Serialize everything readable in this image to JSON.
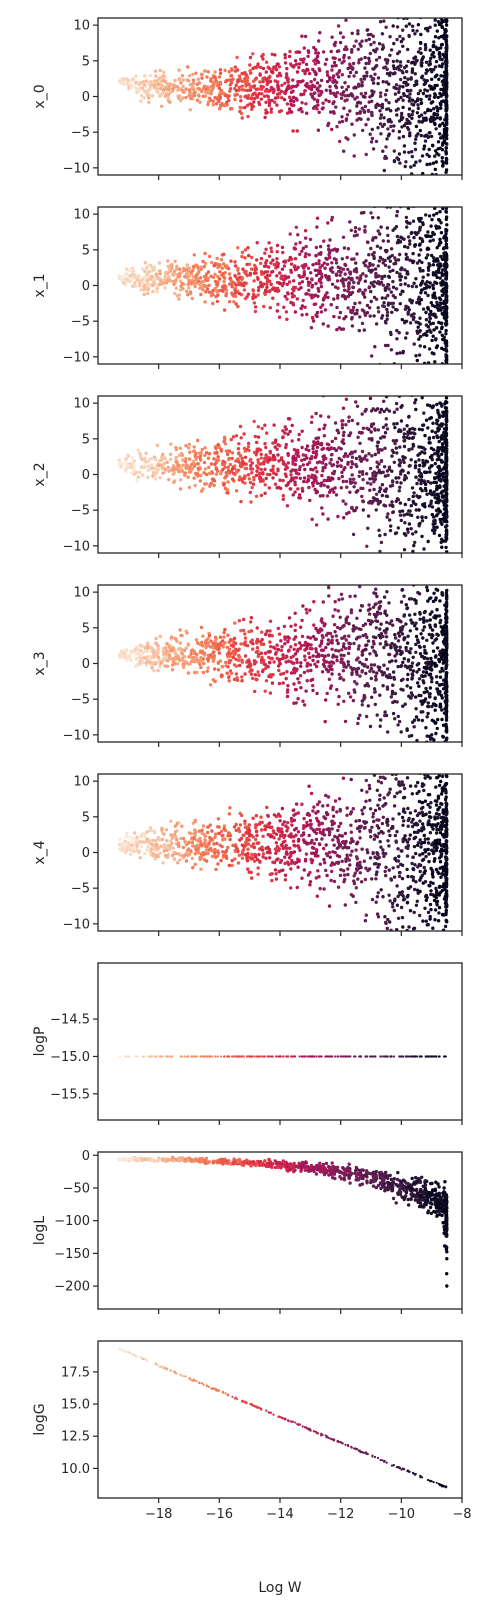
{
  "chart_data": {
    "type": "scatter",
    "layout": "8 vertically stacked panels sharing the x axis",
    "xlabel": "Log W",
    "xlim": [
      -20,
      -8
    ],
    "x_ticks": [
      -18,
      -16,
      -14,
      -12,
      -10,
      -8
    ],
    "x_tick_labels": [
      "−18",
      "−16",
      "−14",
      "−12",
      "−10",
      "−8"
    ],
    "color_scale": "rocket: light peach (≈ −19, low Log W) → orange → crimson → dark purple (≈ −8.5, high Log W)",
    "colors": {
      "rocket": [
        "#faebdd",
        "#f6b48e",
        "#f37651",
        "#e13342",
        "#ad1759",
        "#701f57",
        "#35193e",
        "#03051a"
      ],
      "axes": "#262626",
      "background": "#ffffff"
    },
    "grid": false,
    "legend": "none",
    "panels": [
      {
        "ylabel": "x_0",
        "ylim": [
          -11,
          11
        ],
        "y_ticks": [
          10,
          5,
          0,
          -5,
          -10
        ],
        "y_tick_labels": [
          "10",
          "5",
          "0",
          "−5",
          "−10"
        ],
        "envelope": [
          {
            "x": -19.3,
            "y_low": 2.0,
            "y_high": 2.4
          },
          {
            "x": -18.5,
            "y_low": 0.0,
            "y_high": 2.7
          },
          {
            "x": -17,
            "y_low": -0.8,
            "y_high": 3.0
          },
          {
            "x": -15,
            "y_low": -1.4,
            "y_high": 4.0
          },
          {
            "x": -13,
            "y_low": -2.5,
            "y_high": 6.3
          },
          {
            "x": -11,
            "y_low": -5.5,
            "y_high": 8.5
          },
          {
            "x": -10,
            "y_low": -8.0,
            "y_high": 9.8
          },
          {
            "x": -8.5,
            "y_low": -10.0,
            "y_high": 10.0
          }
        ]
      },
      {
        "ylabel": "x_1",
        "ylim": [
          -11,
          11
        ],
        "y_ticks": [
          10,
          5,
          0,
          -5,
          -10
        ],
        "y_tick_labels": [
          "10",
          "5",
          "0",
          "−5",
          "−10"
        ],
        "envelope": [
          {
            "x": -19.3,
            "y_low": 0.5,
            "y_high": 1.5
          },
          {
            "x": -18.5,
            "y_low": -0.5,
            "y_high": 2.5
          },
          {
            "x": -17,
            "y_low": -1.0,
            "y_high": 3.0
          },
          {
            "x": -15,
            "y_low": -2.0,
            "y_high": 4.0
          },
          {
            "x": -13,
            "y_low": -3.5,
            "y_high": 6.0
          },
          {
            "x": -11,
            "y_low": -6.0,
            "y_high": 9.0
          },
          {
            "x": -10,
            "y_low": -8.5,
            "y_high": 10.0
          },
          {
            "x": -8.5,
            "y_low": -10.0,
            "y_high": 10.0
          }
        ]
      },
      {
        "ylabel": "x_2",
        "ylim": [
          -11,
          11
        ],
        "y_ticks": [
          10,
          5,
          0,
          -5,
          -10
        ],
        "y_tick_labels": [
          "10",
          "5",
          "0",
          "−5",
          "−10"
        ],
        "envelope": [
          {
            "x": -19.3,
            "y_low": 1.0,
            "y_high": 2.0
          },
          {
            "x": -18.5,
            "y_low": -0.5,
            "y_high": 2.8
          },
          {
            "x": -17,
            "y_low": -1.0,
            "y_high": 3.5
          },
          {
            "x": -15,
            "y_low": -2.0,
            "y_high": 4.5
          },
          {
            "x": -13,
            "y_low": -3.5,
            "y_high": 6.5
          },
          {
            "x": -11,
            "y_low": -6.0,
            "y_high": 9.0
          },
          {
            "x": -10,
            "y_low": -8.5,
            "y_high": 10.0
          },
          {
            "x": -8.5,
            "y_low": -10.0,
            "y_high": 10.0
          }
        ]
      },
      {
        "ylabel": "x_3",
        "ylim": [
          -11,
          11
        ],
        "y_ticks": [
          10,
          5,
          0,
          -5,
          -10
        ],
        "y_tick_labels": [
          "10",
          "5",
          "0",
          "−5",
          "−10"
        ],
        "envelope": [
          {
            "x": -19.3,
            "y_low": 0.7,
            "y_high": 1.5
          },
          {
            "x": -18.5,
            "y_low": 0.0,
            "y_high": 2.5
          },
          {
            "x": -17,
            "y_low": -1.0,
            "y_high": 3.5
          },
          {
            "x": -15,
            "y_low": -2.0,
            "y_high": 4.5
          },
          {
            "x": -13,
            "y_low": -3.5,
            "y_high": 6.5
          },
          {
            "x": -11,
            "y_low": -6.0,
            "y_high": 9.0
          },
          {
            "x": -10,
            "y_low": -8.5,
            "y_high": 10.0
          },
          {
            "x": -8.5,
            "y_low": -10.0,
            "y_high": 10.0
          }
        ]
      },
      {
        "ylabel": "x_4",
        "ylim": [
          -11,
          11
        ],
        "y_ticks": [
          10,
          5,
          0,
          -5,
          -10
        ],
        "y_tick_labels": [
          "10",
          "5",
          "0",
          "−5",
          "−10"
        ],
        "envelope": [
          {
            "x": -19.3,
            "y_low": 0.2,
            "y_high": 1.5
          },
          {
            "x": -18.5,
            "y_low": -0.5,
            "y_high": 2.5
          },
          {
            "x": -17,
            "y_low": -1.2,
            "y_high": 3.2
          },
          {
            "x": -15,
            "y_low": -2.0,
            "y_high": 4.5
          },
          {
            "x": -13,
            "y_low": -3.5,
            "y_high": 6.5
          },
          {
            "x": -11,
            "y_low": -6.0,
            "y_high": 9.0
          },
          {
            "x": -10,
            "y_low": -8.5,
            "y_high": 10.0
          },
          {
            "x": -8.5,
            "y_low": -10.0,
            "y_high": 10.0
          }
        ]
      },
      {
        "ylabel": "logP",
        "ylim": [
          -15.85,
          -13.75
        ],
        "y_ticks": [
          -14.5,
          -15,
          -15.5
        ],
        "y_tick_labels": [
          "−14.5",
          "−15.0",
          "−15.5"
        ],
        "envelope": [
          {
            "x": -19.3,
            "y_low": -15.0,
            "y_high": -15.0
          },
          {
            "x": -8.5,
            "y_low": -15.0,
            "y_high": -15.0
          }
        ]
      },
      {
        "ylabel": "logL",
        "ylim": [
          -235,
          5
        ],
        "y_ticks": [
          0,
          -50,
          -100,
          -150,
          -200
        ],
        "y_tick_labels": [
          "0",
          "−50",
          "−100",
          "−150",
          "−200"
        ],
        "envelope": [
          {
            "x": -19.3,
            "y_low": -7,
            "y_high": -4
          },
          {
            "x": -17,
            "y_low": -10,
            "y_high": -5
          },
          {
            "x": -15,
            "y_low": -15,
            "y_high": -8
          },
          {
            "x": -13,
            "y_low": -25,
            "y_high": -12
          },
          {
            "x": -11,
            "y_low": -45,
            "y_high": -25
          },
          {
            "x": -10,
            "y_low": -65,
            "y_high": -35
          },
          {
            "x": -9,
            "y_low": -85,
            "y_high": -45
          },
          {
            "x": -8.6,
            "y_low": -95,
            "y_high": -55
          },
          {
            "x": -8.5,
            "y_low": -225,
            "y_high": -60
          }
        ]
      },
      {
        "ylabel": "logG",
        "ylim": [
          7.7,
          19.9
        ],
        "y_ticks": [
          17.5,
          15.0,
          12.5,
          10.0
        ],
        "y_tick_labels": [
          "17.5",
          "15.0",
          "12.5",
          "10.0"
        ],
        "envelope": [
          {
            "x": -19.3,
            "y_low": 19.25,
            "y_high": 19.35
          },
          {
            "x": -8.5,
            "y_low": 8.45,
            "y_high": 8.55
          }
        ]
      }
    ]
  }
}
